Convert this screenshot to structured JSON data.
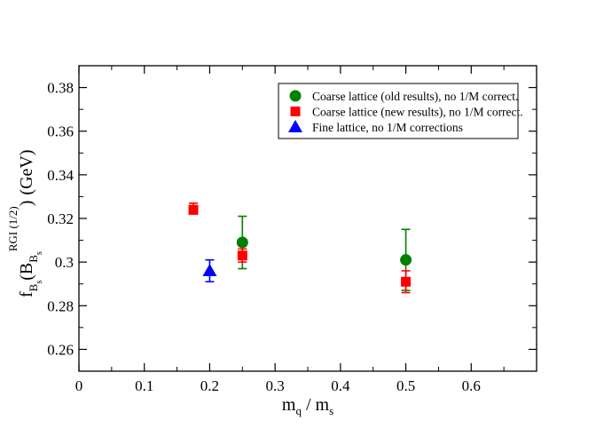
{
  "chart_data": {
    "type": "scatter",
    "title": "",
    "xlabel": "m_q / m_s",
    "xlabel_parts": {
      "main": "m",
      "sub1": "q",
      "sep": " / m",
      "sub2": "s"
    },
    "ylabel": "f_B_s (B_B_s^RGI (1/2)) (GeV)",
    "ylabel_parts": {
      "f": "f",
      "fsub": "B",
      "fsubsub": "s",
      "open": "(B",
      "bsub": "B",
      "bsubsub": "s",
      "sup": "RGI (1/2)",
      "close": ")",
      "unit": "(GeV)"
    },
    "xlim": [
      0,
      0.7
    ],
    "ylim": [
      0.25,
      0.39
    ],
    "xticks": [
      0,
      0.1,
      0.2,
      0.3,
      0.4,
      0.5,
      0.6
    ],
    "xtick_labels": [
      "0",
      "0.1",
      "0.2",
      "0.3",
      "0.4",
      "0.5",
      "0.6"
    ],
    "yticks": [
      0.26,
      0.28,
      0.3,
      0.32,
      0.34,
      0.36,
      0.38
    ],
    "ytick_labels": [
      "0.26",
      "0.28",
      "0.3",
      "0.32",
      "0.34",
      "0.36",
      "0.38"
    ],
    "grid": false,
    "legend_position": "top-right",
    "series": [
      {
        "name": "Coarse lattice (old results), no 1/M correct.",
        "marker": "circle",
        "color": "#008000",
        "points": [
          {
            "x": 0.25,
            "y": 0.309,
            "err_lo": 0.297,
            "err_hi": 0.321
          },
          {
            "x": 0.5,
            "y": 0.301,
            "err_lo": 0.287,
            "err_hi": 0.315
          }
        ]
      },
      {
        "name": "Coarse lattice (new results), no 1/M correct.",
        "marker": "square",
        "color": "#ff0000",
        "points": [
          {
            "x": 0.175,
            "y": 0.324,
            "err_lo": 0.322,
            "err_hi": 0.327
          },
          {
            "x": 0.25,
            "y": 0.303,
            "err_lo": 0.3,
            "err_hi": 0.306
          },
          {
            "x": 0.5,
            "y": 0.291,
            "err_lo": 0.286,
            "err_hi": 0.296
          }
        ]
      },
      {
        "name": "Fine lattice, no 1/M corrections",
        "marker": "triangle",
        "color": "#0000ff",
        "points": [
          {
            "x": 0.2,
            "y": 0.296,
            "err_lo": 0.291,
            "err_hi": 0.301
          }
        ]
      }
    ]
  }
}
